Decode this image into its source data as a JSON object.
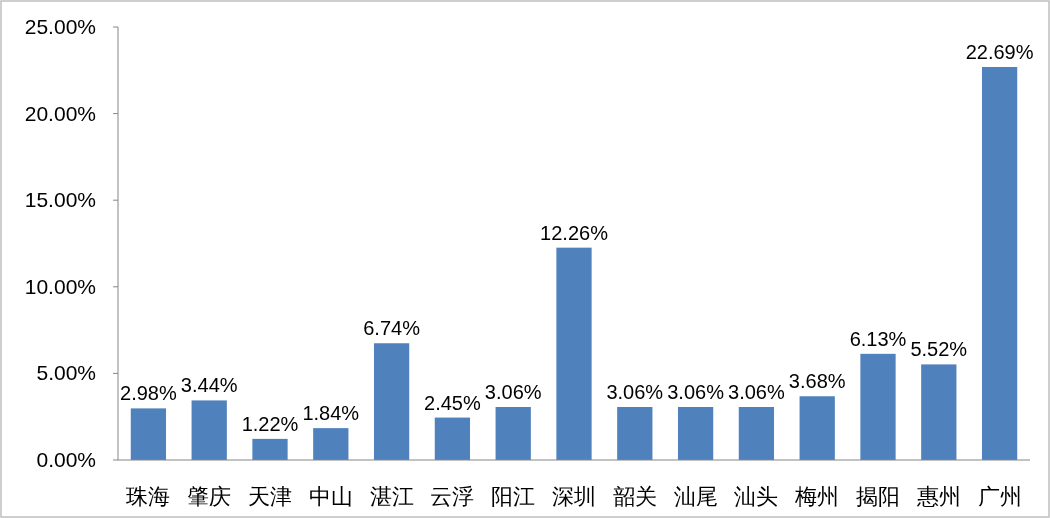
{
  "chart_data": {
    "type": "bar",
    "categories": [
      "珠海",
      "肇庆",
      "天津",
      "中山",
      "湛江",
      "云浮",
      "阳江",
      "深圳",
      "韶关",
      "汕尾",
      "汕头",
      "梅州",
      "揭阳",
      "惠州",
      "广州"
    ],
    "values": [
      2.98,
      3.44,
      1.22,
      1.84,
      6.74,
      2.45,
      3.06,
      12.26,
      3.06,
      3.06,
      3.06,
      3.68,
      6.13,
      5.52,
      22.69
    ],
    "value_labels": [
      "2.98%",
      "3.44%",
      "1.22%",
      "1.84%",
      "6.74%",
      "2.45%",
      "3.06%",
      "12.26%",
      "3.06%",
      "3.06%",
      "3.06%",
      "3.68%",
      "6.13%",
      "5.52%",
      "22.69%"
    ],
    "color": "#4f81bd",
    "ylim": [
      0,
      25
    ],
    "yticks": [
      {
        "value": 0,
        "label": "0.00%"
      },
      {
        "value": 5,
        "label": "5.00%"
      },
      {
        "value": 10,
        "label": "10.00%"
      },
      {
        "value": 15,
        "label": "15.00%"
      },
      {
        "value": 20,
        "label": "20.00%"
      },
      {
        "value": 25,
        "label": "25.00%"
      }
    ],
    "grid": false
  }
}
